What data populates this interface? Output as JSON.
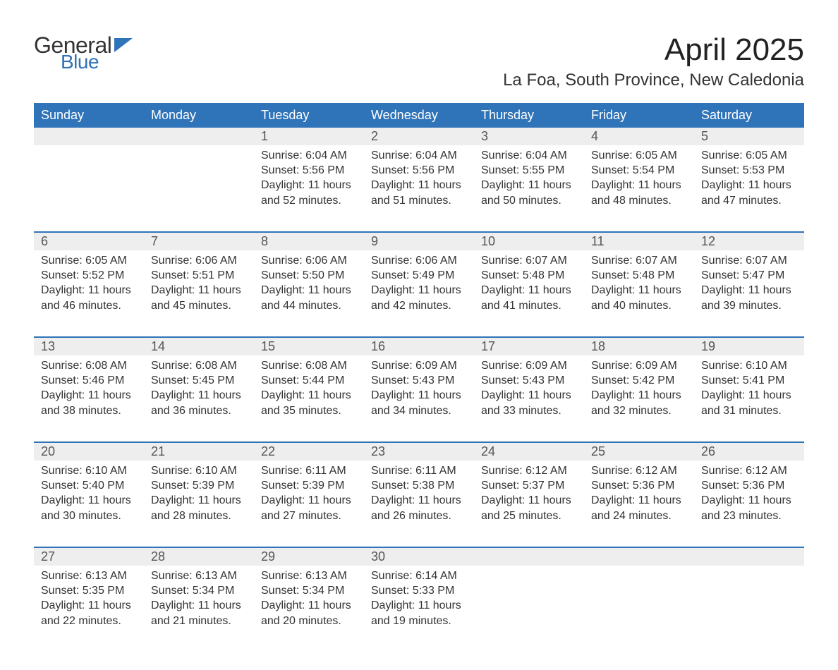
{
  "logo": {
    "general": "General",
    "blue": "Blue"
  },
  "title": "April 2025",
  "location": "La Foa, South Province, New Caledonia",
  "colors": {
    "header_bg": "#2f73b8",
    "header_fg": "#ffffff",
    "daynum_bg": "#eeeeee",
    "text": "#333333",
    "week_rule": "#2f73b8"
  },
  "dow": [
    "Sunday",
    "Monday",
    "Tuesday",
    "Wednesday",
    "Thursday",
    "Friday",
    "Saturday"
  ],
  "weeks": [
    [
      null,
      null,
      {
        "n": "1",
        "sr": "6:04 AM",
        "ss": "5:56 PM",
        "dl": "11 hours and 52 minutes."
      },
      {
        "n": "2",
        "sr": "6:04 AM",
        "ss": "5:56 PM",
        "dl": "11 hours and 51 minutes."
      },
      {
        "n": "3",
        "sr": "6:04 AM",
        "ss": "5:55 PM",
        "dl": "11 hours and 50 minutes."
      },
      {
        "n": "4",
        "sr": "6:05 AM",
        "ss": "5:54 PM",
        "dl": "11 hours and 48 minutes."
      },
      {
        "n": "5",
        "sr": "6:05 AM",
        "ss": "5:53 PM",
        "dl": "11 hours and 47 minutes."
      }
    ],
    [
      {
        "n": "6",
        "sr": "6:05 AM",
        "ss": "5:52 PM",
        "dl": "11 hours and 46 minutes."
      },
      {
        "n": "7",
        "sr": "6:06 AM",
        "ss": "5:51 PM",
        "dl": "11 hours and 45 minutes."
      },
      {
        "n": "8",
        "sr": "6:06 AM",
        "ss": "5:50 PM",
        "dl": "11 hours and 44 minutes."
      },
      {
        "n": "9",
        "sr": "6:06 AM",
        "ss": "5:49 PM",
        "dl": "11 hours and 42 minutes."
      },
      {
        "n": "10",
        "sr": "6:07 AM",
        "ss": "5:48 PM",
        "dl": "11 hours and 41 minutes."
      },
      {
        "n": "11",
        "sr": "6:07 AM",
        "ss": "5:48 PM",
        "dl": "11 hours and 40 minutes."
      },
      {
        "n": "12",
        "sr": "6:07 AM",
        "ss": "5:47 PM",
        "dl": "11 hours and 39 minutes."
      }
    ],
    [
      {
        "n": "13",
        "sr": "6:08 AM",
        "ss": "5:46 PM",
        "dl": "11 hours and 38 minutes."
      },
      {
        "n": "14",
        "sr": "6:08 AM",
        "ss": "5:45 PM",
        "dl": "11 hours and 36 minutes."
      },
      {
        "n": "15",
        "sr": "6:08 AM",
        "ss": "5:44 PM",
        "dl": "11 hours and 35 minutes."
      },
      {
        "n": "16",
        "sr": "6:09 AM",
        "ss": "5:43 PM",
        "dl": "11 hours and 34 minutes."
      },
      {
        "n": "17",
        "sr": "6:09 AM",
        "ss": "5:43 PM",
        "dl": "11 hours and 33 minutes."
      },
      {
        "n": "18",
        "sr": "6:09 AM",
        "ss": "5:42 PM",
        "dl": "11 hours and 32 minutes."
      },
      {
        "n": "19",
        "sr": "6:10 AM",
        "ss": "5:41 PM",
        "dl": "11 hours and 31 minutes."
      }
    ],
    [
      {
        "n": "20",
        "sr": "6:10 AM",
        "ss": "5:40 PM",
        "dl": "11 hours and 30 minutes."
      },
      {
        "n": "21",
        "sr": "6:10 AM",
        "ss": "5:39 PM",
        "dl": "11 hours and 28 minutes."
      },
      {
        "n": "22",
        "sr": "6:11 AM",
        "ss": "5:39 PM",
        "dl": "11 hours and 27 minutes."
      },
      {
        "n": "23",
        "sr": "6:11 AM",
        "ss": "5:38 PM",
        "dl": "11 hours and 26 minutes."
      },
      {
        "n": "24",
        "sr": "6:12 AM",
        "ss": "5:37 PM",
        "dl": "11 hours and 25 minutes."
      },
      {
        "n": "25",
        "sr": "6:12 AM",
        "ss": "5:36 PM",
        "dl": "11 hours and 24 minutes."
      },
      {
        "n": "26",
        "sr": "6:12 AM",
        "ss": "5:36 PM",
        "dl": "11 hours and 23 minutes."
      }
    ],
    [
      {
        "n": "27",
        "sr": "6:13 AM",
        "ss": "5:35 PM",
        "dl": "11 hours and 22 minutes."
      },
      {
        "n": "28",
        "sr": "6:13 AM",
        "ss": "5:34 PM",
        "dl": "11 hours and 21 minutes."
      },
      {
        "n": "29",
        "sr": "6:13 AM",
        "ss": "5:34 PM",
        "dl": "11 hours and 20 minutes."
      },
      {
        "n": "30",
        "sr": "6:14 AM",
        "ss": "5:33 PM",
        "dl": "11 hours and 19 minutes."
      },
      null,
      null,
      null
    ]
  ],
  "labels": {
    "sunrise": "Sunrise: ",
    "sunset": "Sunset: ",
    "daylight": "Daylight: "
  }
}
